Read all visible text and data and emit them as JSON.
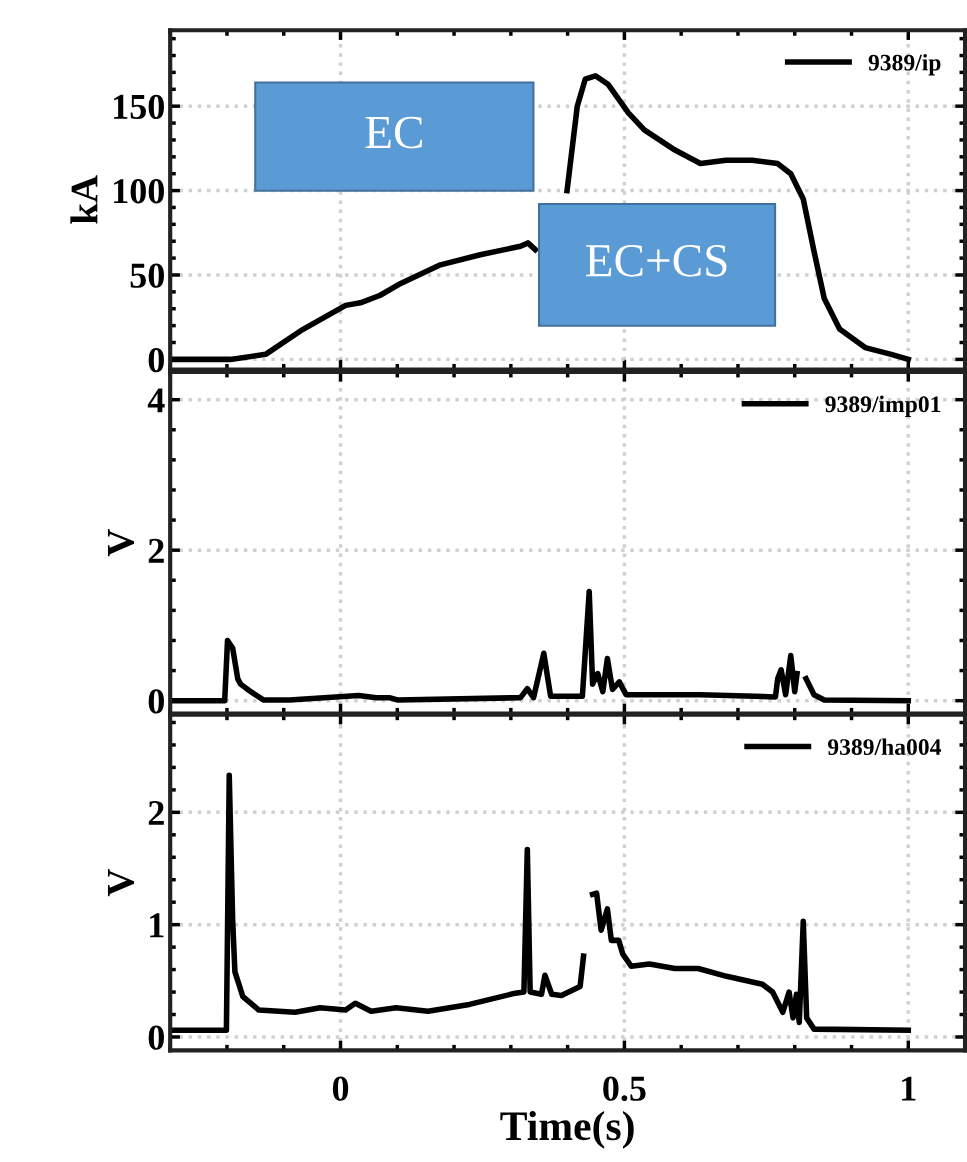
{
  "chart_data": [
    {
      "type": "line",
      "ylabel": "kA",
      "xlim": [
        -0.3,
        1.1
      ],
      "xticks": [
        0,
        0.5,
        1
      ],
      "ylim": [
        -6,
        195
      ],
      "yticks": [
        0,
        50,
        100,
        150
      ],
      "grid": true,
      "legend": "top right",
      "tick_labels": "y",
      "annotations": [
        "EC",
        "EC+CS"
      ],
      "series": [
        {
          "name": "9389/ip",
          "color": "#000000",
          "x": [
            -0.3,
            -0.194,
            -0.132,
            -0.07,
            0.009,
            0.035,
            0.07,
            0.106,
            0.176,
            0.246,
            0.317,
            0.33,
            0.343,
            0.37,
            0.399,
            0.417,
            0.431,
            0.449,
            0.471,
            0.507,
            0.535,
            0.589,
            0.634,
            0.679,
            0.725,
            0.77,
            0.793,
            0.815,
            0.834,
            0.852,
            0.879,
            0.924,
            0.97,
            1.0
          ],
          "values": [
            0,
            0,
            3,
            17,
            32,
            33.5,
            38,
            45,
            56,
            62,
            67,
            69,
            65,
            null,
            100,
            150,
            166,
            168,
            163,
            146,
            136,
            124,
            116,
            118,
            118,
            116,
            110,
            95,
            64,
            36,
            18,
            7,
            3,
            0
          ]
        }
      ]
    },
    {
      "type": "line",
      "ylabel": "V",
      "xlim": [
        -0.3,
        1.1
      ],
      "xticks": [
        0,
        0.5,
        1
      ],
      "ylim": [
        -0.17,
        4.37
      ],
      "yticks": [
        0,
        2,
        4
      ],
      "grid": true,
      "legend": "top right",
      "tick_labels": "y",
      "series": [
        {
          "name": "9389/imp01",
          "color": "#000000",
          "x": [
            -0.3,
            -0.204,
            -0.199,
            -0.19,
            -0.181,
            -0.176,
            -0.158,
            -0.136,
            -0.09,
            0.032,
            0.063,
            0.086,
            0.1,
            0.317,
            0.329,
            0.34,
            0.358,
            0.37,
            0.426,
            0.438,
            0.444,
            0.453,
            0.462,
            0.47,
            0.479,
            0.491,
            0.503,
            0.634,
            0.766,
            0.77,
            0.776,
            0.784,
            0.793,
            0.8,
            0.804,
            0.808,
            0.82,
            0.834,
            0.852,
            1.0
          ],
          "values": [
            0,
            0,
            0.8,
            0.7,
            0.29,
            0.22,
            0.12,
            0.01,
            0.01,
            0.07,
            0.04,
            0.04,
            0.01,
            0.04,
            0.16,
            0.04,
            0.63,
            0.06,
            0.06,
            1.45,
            0.22,
            0.36,
            0.12,
            0.56,
            0.15,
            0.25,
            0.08,
            0.08,
            0.05,
            0.29,
            0.41,
            0.08,
            0.6,
            0.12,
            0.36,
            null,
            0.29,
            0.08,
            0.01,
            0
          ]
        }
      ]
    },
    {
      "type": "line",
      "ylabel": "V",
      "xlabel": "Time(s)",
      "xlim": [
        -0.3,
        1.1
      ],
      "xticks": [
        0,
        0.5,
        1
      ],
      "ylim": [
        -0.12,
        2.87
      ],
      "yticks": [
        0,
        1,
        2
      ],
      "grid": true,
      "legend": "top right",
      "series": [
        {
          "name": "9389/ha004",
          "color": "#000000",
          "x": [
            -0.3,
            -0.201,
            -0.196,
            -0.19,
            -0.186,
            -0.172,
            -0.144,
            -0.08,
            -0.036,
            0.009,
            0.026,
            0.054,
            0.098,
            0.154,
            0.227,
            0.308,
            0.323,
            0.329,
            0.334,
            0.354,
            0.36,
            0.372,
            0.389,
            0.422,
            0.428,
            0.433,
            0.44,
            0.444,
            0.451,
            0.459,
            0.47,
            0.477,
            0.49,
            0.497,
            0.512,
            0.544,
            0.589,
            0.63,
            0.68,
            0.743,
            0.761,
            0.779,
            0.79,
            0.797,
            0.803,
            0.808,
            0.815,
            0.821,
            0.834,
            1.0
          ],
          "values": [
            0.06,
            0.06,
            2.33,
            1.04,
            0.58,
            0.36,
            0.24,
            0.22,
            0.26,
            0.24,
            0.3,
            0.23,
            0.26,
            0.23,
            0.29,
            0.39,
            0.4,
            1.67,
            0.4,
            0.38,
            0.55,
            0.38,
            0.37,
            0.45,
            0.72,
            null,
            null,
            1.27,
            1.28,
            0.95,
            1.14,
            0.86,
            0.86,
            0.74,
            0.63,
            0.65,
            0.61,
            0.61,
            0.54,
            0.47,
            0.4,
            0.22,
            0.4,
            0.17,
            0.38,
            0.13,
            1.03,
            0.17,
            0.07,
            0.06
          ]
        }
      ]
    }
  ]
}
